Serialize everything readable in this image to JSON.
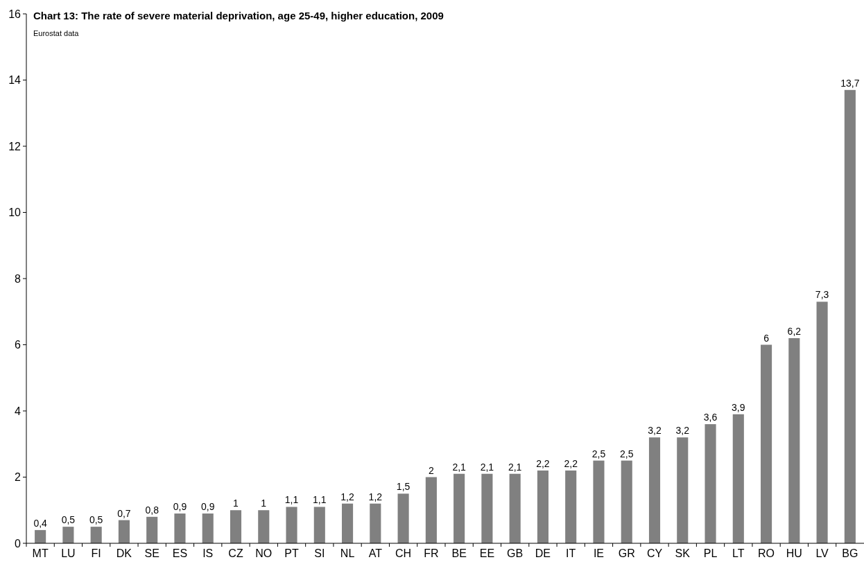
{
  "chart_data": {
    "type": "bar",
    "title": "Chart 13: The rate of severe material deprivation, age 25-49, higher education, 2009",
    "subtitle": "Eurostat data",
    "categories": [
      "MT",
      "LU",
      "FI",
      "DK",
      "SE",
      "ES",
      "IS",
      "CZ",
      "NO",
      "PT",
      "SI",
      "NL",
      "AT",
      "CH",
      "FR",
      "BE",
      "EE",
      "GB",
      "DE",
      "IT",
      "IE",
      "GR",
      "CY",
      "SK",
      "PL",
      "LT",
      "RO",
      "HU",
      "LV",
      "BG"
    ],
    "values": [
      0.4,
      0.5,
      0.5,
      0.7,
      0.8,
      0.9,
      0.9,
      1,
      1,
      1.1,
      1.1,
      1.2,
      1.2,
      1.5,
      2,
      2.1,
      2.1,
      2.1,
      2.2,
      2.2,
      2.5,
      2.5,
      3.2,
      3.2,
      3.6,
      3.9,
      6,
      6.2,
      7.3,
      13.7
    ],
    "value_labels": [
      "0,4",
      "0,5",
      "0,5",
      "0,7",
      "0,8",
      "0,9",
      "0,9",
      "1",
      "1",
      "1,1",
      "1,1",
      "1,2",
      "1,2",
      "1,5",
      "2",
      "2,1",
      "2,1",
      "2,1",
      "2,2",
      "2,2",
      "2,5",
      "2,5",
      "3,2",
      "3,2",
      "3,6",
      "3,9",
      "6",
      "6,2",
      "7,3",
      "13,7"
    ],
    "color": "#808080",
    "ylim": [
      0,
      16
    ],
    "yticks": [
      0,
      2,
      4,
      6,
      8,
      10,
      12,
      14,
      16
    ],
    "grid": false
  }
}
